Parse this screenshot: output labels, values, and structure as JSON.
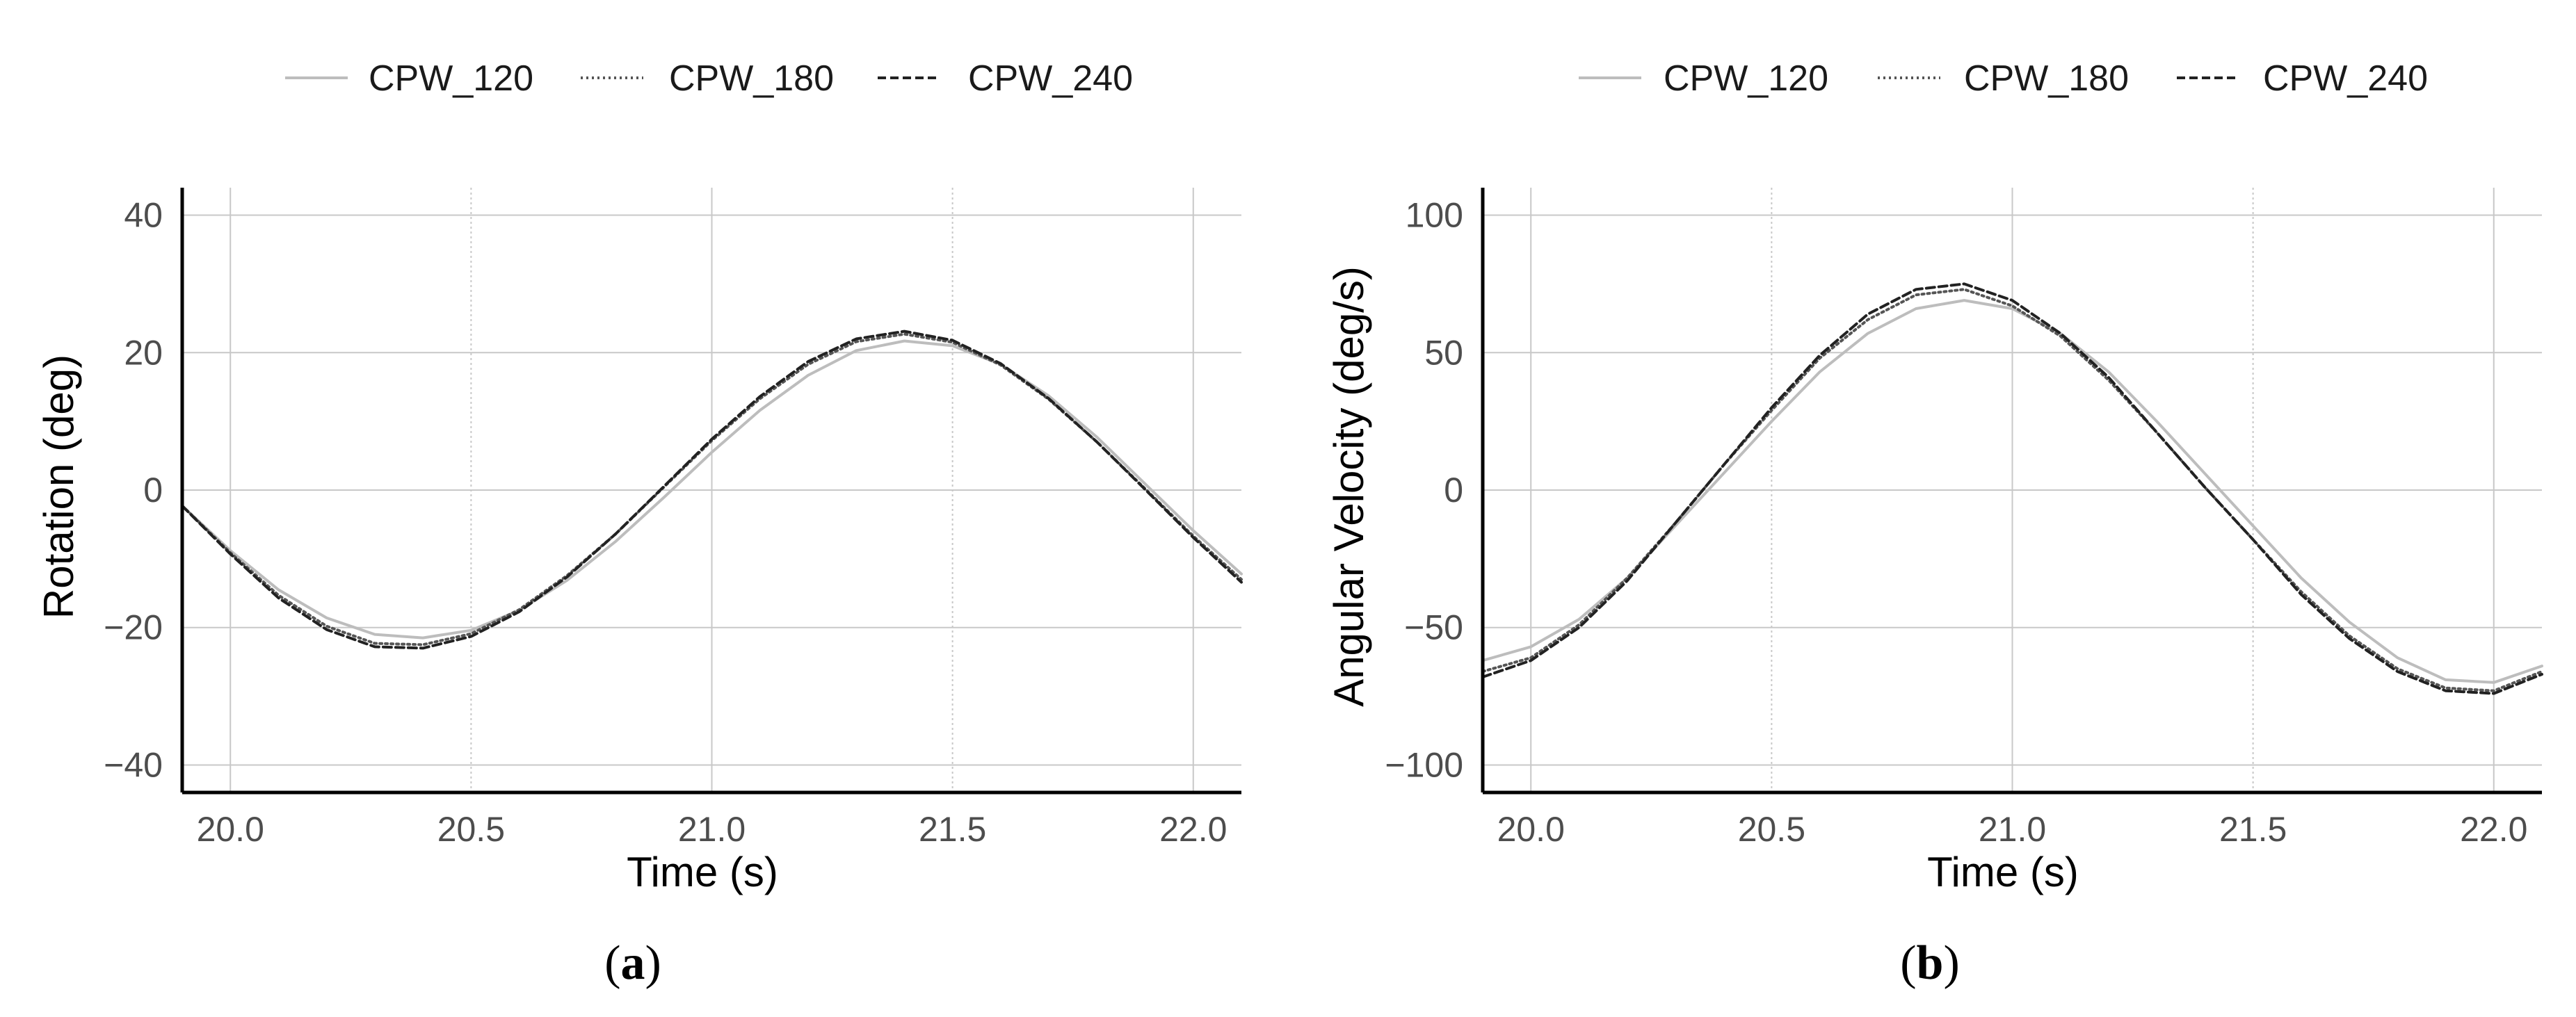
{
  "legend": [
    "CPW_120",
    "CPW_180",
    "CPW_240"
  ],
  "chart_data": [
    {
      "type": "line",
      "panel_label": "a",
      "title": "",
      "xlabel": "Time (s)",
      "ylabel": "Rotation (deg)",
      "xlim": [
        19.9,
        22.1
      ],
      "ylim": [
        -44,
        44
      ],
      "xticks": [
        20.0,
        20.5,
        21.0,
        21.5,
        22.0
      ],
      "xtick_labels": [
        "20.0",
        "20.5",
        "21.0",
        "21.5",
        "22.0"
      ],
      "yticks": [
        40,
        20,
        0,
        -20,
        -40
      ],
      "ytick_labels": [
        "40",
        "20",
        "0",
        "−20",
        "−40"
      ],
      "grid": true,
      "legend_position": "top",
      "series": [
        {
          "name": "CPW_120",
          "color": "#bdbdbd",
          "dash": "solid",
          "x": [
            19.9,
            20.0,
            20.1,
            20.2,
            20.3,
            20.4,
            20.5,
            20.6,
            20.7,
            20.8,
            20.9,
            21.0,
            21.1,
            21.2,
            21.3,
            21.4,
            21.5,
            21.6,
            21.7,
            21.8,
            21.9,
            22.0,
            22.1
          ],
          "y": [
            -2.3,
            -8.8,
            -14.5,
            -18.6,
            -21.0,
            -21.5,
            -20.4,
            -17.5,
            -13.1,
            -7.5,
            -1.1,
            5.5,
            11.6,
            16.7,
            20.3,
            21.7,
            21.0,
            18.3,
            13.7,
            7.7,
            0.9,
            -5.9,
            -12.2
          ]
        },
        {
          "name": "CPW_180",
          "color": "#555555",
          "dash": "dotted",
          "x": [
            19.9,
            20.0,
            20.1,
            20.2,
            20.3,
            20.4,
            20.5,
            20.6,
            20.7,
            20.8,
            20.9,
            21.0,
            21.1,
            21.2,
            21.3,
            21.4,
            21.5,
            21.6,
            21.7,
            21.8,
            21.9,
            22.0,
            22.1
          ],
          "y": [
            -2.3,
            -9.1,
            -15.3,
            -19.8,
            -22.3,
            -22.5,
            -20.9,
            -17.4,
            -12.4,
            -6.4,
            0.4,
            7.2,
            13.3,
            18.3,
            21.6,
            22.7,
            21.5,
            18.2,
            13.2,
            7.0,
            0.2,
            -6.7,
            -13.0
          ]
        },
        {
          "name": "CPW_240",
          "color": "#222222",
          "dash": "dashed",
          "x": [
            19.9,
            20.0,
            20.1,
            20.2,
            20.3,
            20.4,
            20.5,
            20.6,
            20.7,
            20.8,
            20.9,
            21.0,
            21.1,
            21.2,
            21.3,
            21.4,
            21.5,
            21.6,
            21.7,
            21.8,
            21.9,
            22.0,
            22.1
          ],
          "y": [
            -2.3,
            -9.3,
            -15.7,
            -20.3,
            -22.8,
            -23.0,
            -21.3,
            -17.7,
            -12.6,
            -6.4,
            0.5,
            7.4,
            13.6,
            18.7,
            22.0,
            23.1,
            21.8,
            18.4,
            13.3,
            7.0,
            0.1,
            -6.9,
            -13.4
          ]
        }
      ]
    },
    {
      "type": "line",
      "panel_label": "b",
      "title": "",
      "xlabel": "Time (s)",
      "ylabel": "Angular Velocity (deg/s)",
      "xlim": [
        19.9,
        22.1
      ],
      "ylim": [
        -110,
        110
      ],
      "xticks": [
        20.0,
        20.5,
        21.0,
        21.5,
        22.0
      ],
      "xtick_labels": [
        "20.0",
        "20.5",
        "21.0",
        "21.5",
        "22.0"
      ],
      "yticks": [
        100,
        50,
        0,
        -50,
        -100
      ],
      "ytick_labels": [
        "100",
        "50",
        "0",
        "−50",
        "−100"
      ],
      "grid": true,
      "legend_position": "top",
      "series": [
        {
          "name": "CPW_120",
          "color": "#bdbdbd",
          "dash": "solid",
          "x": [
            19.9,
            20.0,
            20.1,
            20.2,
            20.3,
            20.4,
            20.5,
            20.6,
            20.7,
            20.8,
            20.9,
            21.0,
            21.1,
            21.2,
            21.3,
            21.4,
            21.5,
            21.6,
            21.7,
            21.8,
            21.9,
            22.0,
            22.1
          ],
          "y": [
            -62,
            -57,
            -47,
            -32,
            -13,
            6,
            25,
            43,
            57,
            66,
            69,
            66,
            57,
            43,
            25,
            6,
            -13,
            -32,
            -48,
            -61,
            -69,
            -70,
            -64
          ]
        },
        {
          "name": "CPW_180",
          "color": "#555555",
          "dash": "dotted",
          "x": [
            19.9,
            20.0,
            20.1,
            20.2,
            20.3,
            20.4,
            20.5,
            20.6,
            20.7,
            20.8,
            20.9,
            21.0,
            21.1,
            21.2,
            21.3,
            21.4,
            21.5,
            21.6,
            21.7,
            21.8,
            21.9,
            22.0,
            22.1
          ],
          "y": [
            -66,
            -61,
            -49,
            -32,
            -12,
            9,
            29,
            48,
            62,
            71,
            73,
            67,
            56,
            40,
            21,
            1,
            -18,
            -37,
            -53,
            -65,
            -72,
            -73,
            -66
          ]
        },
        {
          "name": "CPW_240",
          "color": "#222222",
          "dash": "dashed",
          "x": [
            19.9,
            20.0,
            20.1,
            20.2,
            20.3,
            20.4,
            20.5,
            20.6,
            20.7,
            20.8,
            20.9,
            21.0,
            21.1,
            21.2,
            21.3,
            21.4,
            21.5,
            21.6,
            21.7,
            21.8,
            21.9,
            22.0,
            22.1
          ],
          "y": [
            -68,
            -62,
            -50,
            -33,
            -12,
            9,
            30,
            49,
            64,
            73,
            75,
            69,
            57,
            41,
            21,
            1,
            -18,
            -38,
            -54,
            -66,
            -73,
            -74,
            -67
          ]
        }
      ]
    }
  ]
}
